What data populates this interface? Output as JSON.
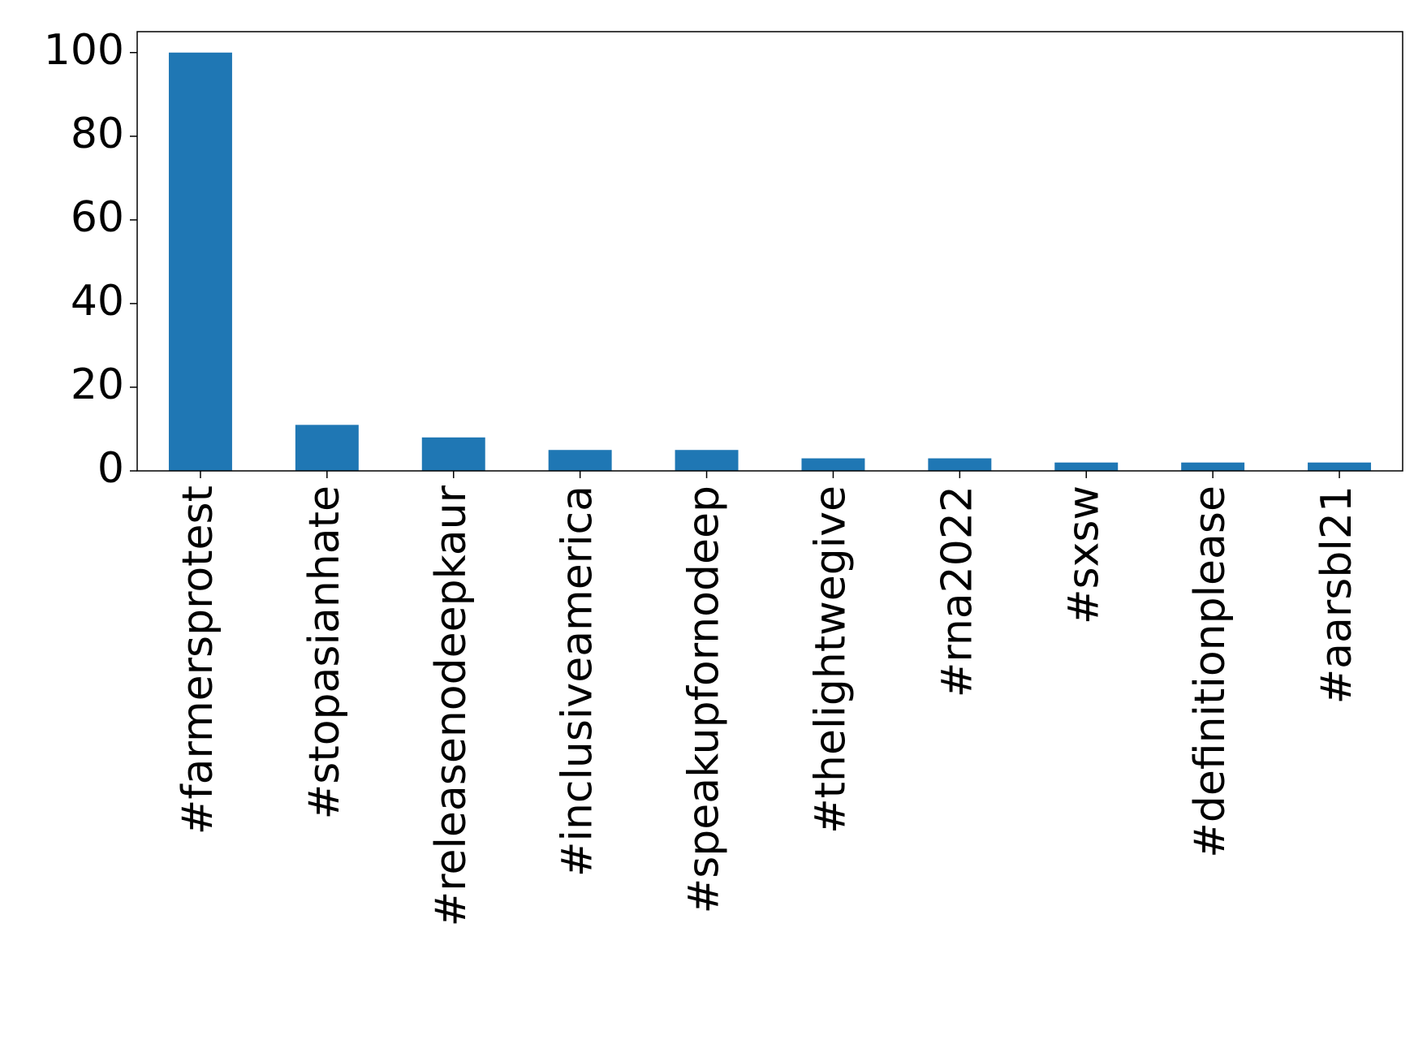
{
  "chart_data": {
    "type": "bar",
    "categories": [
      "#farmersprotest",
      "#stopasianhate",
      "#releasenodeepkaur",
      "#inclusiveamerica",
      "#speakupfornodeep",
      "#thelightwegive",
      "#rna2022",
      "#sxsw",
      "#definitionplease",
      "#aarsbl21"
    ],
    "values": [
      100,
      11,
      8,
      5,
      5,
      3,
      3,
      2,
      2,
      2
    ],
    "color": "#1f77b4",
    "ylim": [
      0,
      105
    ],
    "yticks": [
      0,
      20,
      40,
      60,
      80,
      100
    ],
    "grid": false
  }
}
